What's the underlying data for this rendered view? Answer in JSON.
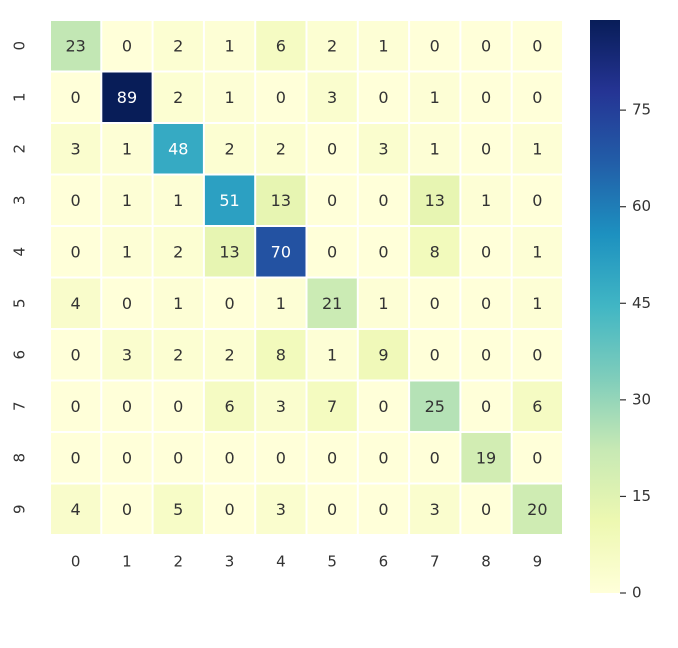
{
  "chart_data": {
    "type": "heatmap",
    "title": "",
    "xlabel": "",
    "ylabel": "",
    "x_tick_labels": [
      "0",
      "1",
      "2",
      "3",
      "4",
      "5",
      "6",
      "7",
      "8",
      "9"
    ],
    "y_tick_labels": [
      "0",
      "1",
      "2",
      "3",
      "4",
      "5",
      "6",
      "7",
      "8",
      "9"
    ],
    "values": [
      [
        23,
        0,
        2,
        1,
        6,
        2,
        1,
        0,
        0,
        0
      ],
      [
        0,
        89,
        2,
        1,
        0,
        3,
        0,
        1,
        0,
        0
      ],
      [
        3,
        1,
        48,
        2,
        2,
        0,
        3,
        1,
        0,
        1
      ],
      [
        0,
        1,
        1,
        51,
        13,
        0,
        0,
        13,
        1,
        0
      ],
      [
        0,
        1,
        2,
        13,
        70,
        0,
        0,
        8,
        0,
        1
      ],
      [
        4,
        0,
        1,
        0,
        1,
        21,
        1,
        0,
        0,
        1
      ],
      [
        0,
        3,
        2,
        2,
        8,
        1,
        9,
        0,
        0,
        0
      ],
      [
        0,
        0,
        0,
        6,
        3,
        7,
        0,
        25,
        0,
        6
      ],
      [
        0,
        0,
        0,
        0,
        0,
        0,
        0,
        0,
        19,
        0
      ],
      [
        4,
        0,
        5,
        0,
        3,
        0,
        0,
        3,
        0,
        20
      ]
    ],
    "colormap": "YlGnBu",
    "vmin": 0,
    "vmax": 89,
    "colorbar_ticks": [
      0,
      15,
      30,
      45,
      60,
      75
    ],
    "colorbar_tick_labels": [
      "0",
      "15",
      "30",
      "45",
      "60",
      "75"
    ],
    "annotations": true,
    "cell_gridlines": "white",
    "colors": {
      "annotation_dark": "#333333",
      "annotation_light": "#ffffff",
      "tick_text": "#333333"
    }
  }
}
